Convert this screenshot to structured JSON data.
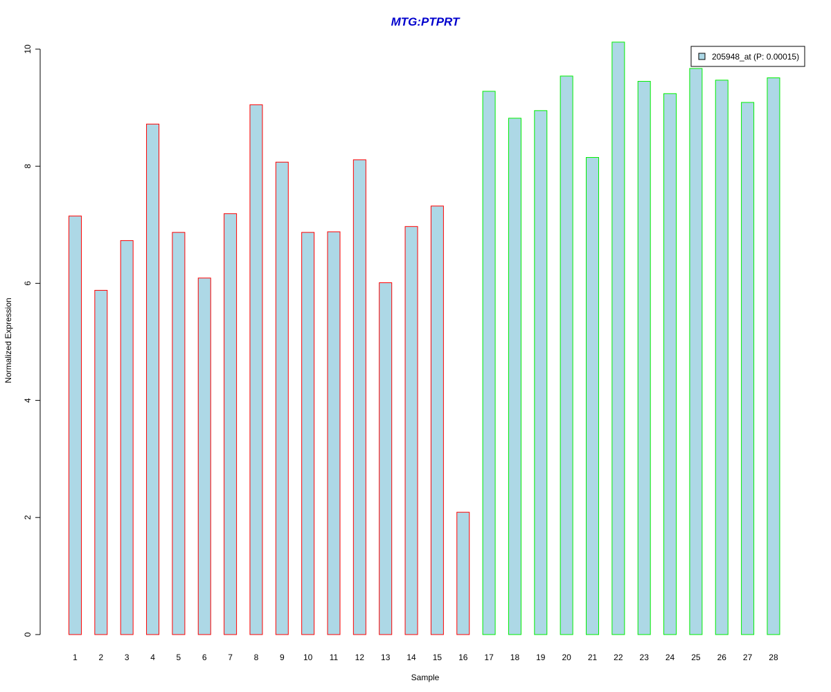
{
  "chart_data": {
    "type": "bar",
    "title": "MTG:PTPRT",
    "xlabel": "Sample",
    "ylabel": "Normalized Expression",
    "categories": [
      "1",
      "2",
      "3",
      "4",
      "5",
      "6",
      "7",
      "8",
      "9",
      "10",
      "11",
      "12",
      "13",
      "14",
      "15",
      "16",
      "17",
      "18",
      "19",
      "20",
      "21",
      "22",
      "23",
      "24",
      "25",
      "26",
      "27",
      "28"
    ],
    "series": [
      {
        "name": "205948_at (P: 0.00015)",
        "values": [
          7.15,
          5.88,
          6.73,
          8.72,
          6.87,
          6.09,
          7.19,
          9.05,
          8.07,
          6.87,
          6.88,
          8.11,
          6.01,
          6.97,
          7.32,
          2.09,
          9.28,
          8.82,
          8.95,
          9.54,
          8.15,
          10.12,
          9.45,
          9.24,
          9.67,
          9.47,
          9.09,
          9.51
        ]
      }
    ],
    "groups": [
      {
        "from": 1,
        "to": 16,
        "border_color": "#ff0000"
      },
      {
        "from": 17,
        "to": 28,
        "border_color": "#00ee00"
      }
    ],
    "yticks": [
      0,
      2,
      4,
      6,
      8,
      10
    ],
    "ylim": [
      0,
      10.2
    ],
    "bar_fill": "#add8e6",
    "title_color": "#0000cd",
    "legend_position": "top-right",
    "grid": false
  }
}
